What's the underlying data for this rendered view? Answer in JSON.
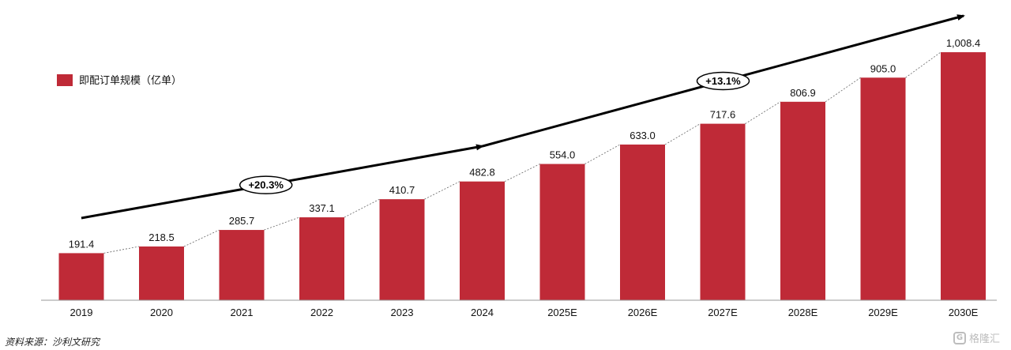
{
  "chart_data": {
    "type": "bar",
    "categories": [
      "2019",
      "2020",
      "2021",
      "2022",
      "2023",
      "2024",
      "2025E",
      "2026E",
      "2027E",
      "2028E",
      "2029E",
      "2030E"
    ],
    "series": [
      {
        "name": "即配订单规模（亿单）",
        "values": [
          191.4,
          218.5,
          285.7,
          337.1,
          410.7,
          482.8,
          554.0,
          633.0,
          717.6,
          806.9,
          905.0,
          1008.4
        ],
        "labels": [
          "191.4",
          "218.5",
          "285.7",
          "337.1",
          "410.7",
          "482.8",
          "554.0",
          "633.0",
          "717.6",
          "806.9",
          "905.0",
          "1,008.4"
        ],
        "color": "#bf2a37"
      }
    ],
    "annotations": [
      {
        "text": "+20.3%",
        "from": "2019",
        "to": "2024"
      },
      {
        "text": "+13.1%",
        "from": "2024",
        "to": "2030E"
      }
    ],
    "legend_position": "top-left",
    "ylim": [
      0,
      1150
    ],
    "grid": false
  },
  "source": "资料来源：沙利文研究",
  "watermark": "格隆汇"
}
